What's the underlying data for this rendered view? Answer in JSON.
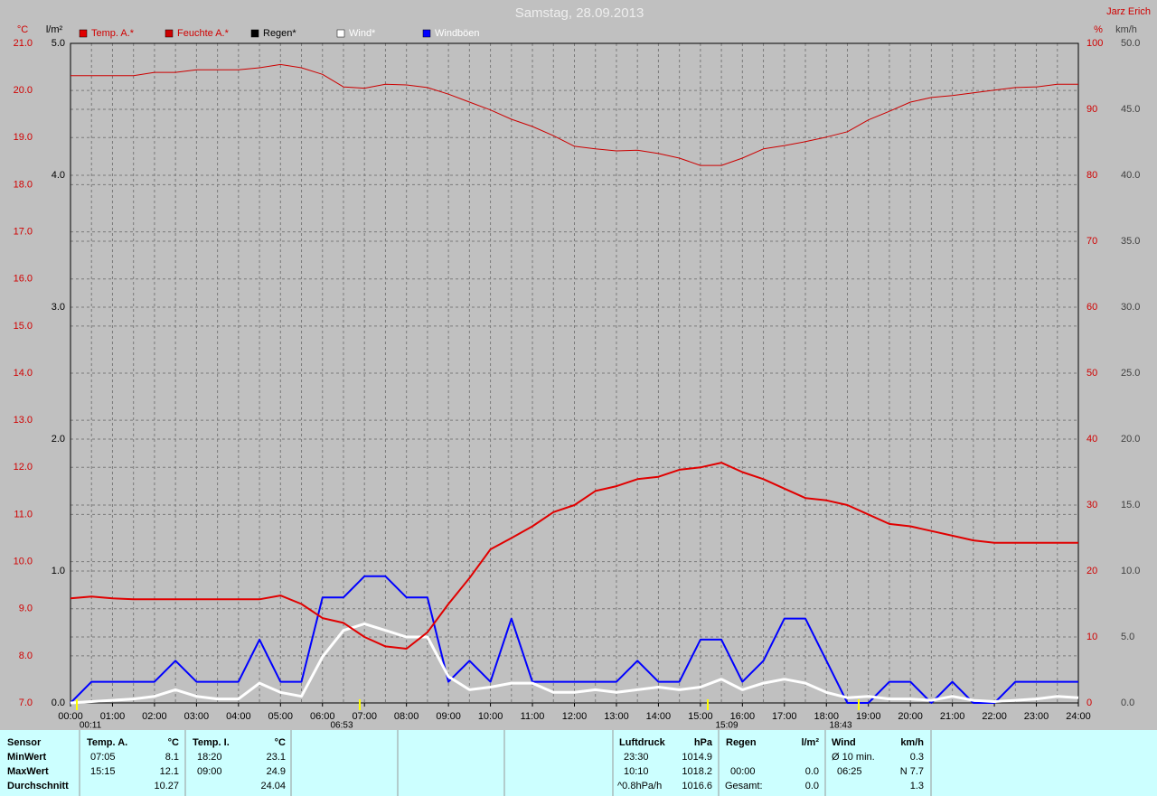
{
  "chart_data": {
    "type": "line",
    "title": "Samstag, 28.09.2013",
    "author": "Jarz Erich",
    "y_label": "°C",
    "y2_label": "l/m²",
    "y3_label": "%",
    "y4_label": "km/h",
    "grid": true,
    "xlim": [
      0,
      24
    ],
    "xticks": [
      {
        "value": 0,
        "label": "00:00"
      },
      {
        "value": 1,
        "label": "01:00"
      },
      {
        "value": 2,
        "label": "02:00"
      },
      {
        "value": 3,
        "label": "03:00"
      },
      {
        "value": 4,
        "label": "04:00"
      },
      {
        "value": 5,
        "label": "05:00"
      },
      {
        "value": 6,
        "label": "06:00"
      },
      {
        "value": 7,
        "label": "07:00"
      },
      {
        "value": 8,
        "label": "08:00"
      },
      {
        "value": 9,
        "label": "09:00"
      },
      {
        "value": 10,
        "label": "10:00"
      },
      {
        "value": 11,
        "label": "11:00"
      },
      {
        "value": 12,
        "label": "12:00"
      },
      {
        "value": 13,
        "label": "13:00"
      },
      {
        "value": 14,
        "label": "14:00"
      },
      {
        "value": 15,
        "label": "15:00"
      },
      {
        "value": 16,
        "label": "16:00"
      },
      {
        "value": 17,
        "label": "17:00"
      },
      {
        "value": 18,
        "label": "18:00"
      },
      {
        "value": 19,
        "label": "19:00"
      },
      {
        "value": 20,
        "label": "20:00"
      },
      {
        "value": 21,
        "label": "21:00"
      },
      {
        "value": 22,
        "label": "22:00"
      },
      {
        "value": 23,
        "label": "23:00"
      },
      {
        "value": 24,
        "label": "24:00"
      }
    ],
    "ylim": [
      7,
      21
    ],
    "yticks": [
      {
        "value": 21,
        "label": "21.0"
      },
      {
        "value": 20,
        "label": "20.0"
      },
      {
        "value": 19,
        "label": "19.0"
      },
      {
        "value": 18,
        "label": "18.0"
      },
      {
        "value": 17,
        "label": "17.0"
      },
      {
        "value": 16,
        "label": "16.0"
      },
      {
        "value": 15,
        "label": "15.0"
      },
      {
        "value": 14,
        "label": "14.0"
      },
      {
        "value": 13,
        "label": "13.0"
      },
      {
        "value": 12,
        "label": "12.0"
      },
      {
        "value": 11,
        "label": "11.0"
      },
      {
        "value": 10,
        "label": "10.0"
      },
      {
        "value": 9,
        "label": "9.0"
      },
      {
        "value": 8,
        "label": "8.0"
      },
      {
        "value": 7,
        "label": "7.0"
      }
    ],
    "y2lim": [
      0,
      5
    ],
    "y2ticks": [
      {
        "value": 5,
        "label": "5.0"
      },
      {
        "value": 4,
        "label": "4.0"
      },
      {
        "value": 3,
        "label": "3.0"
      },
      {
        "value": 2,
        "label": "2.0"
      },
      {
        "value": 1,
        "label": "1.0"
      },
      {
        "value": 0,
        "label": "0.0"
      }
    ],
    "y3lim": [
      0,
      100
    ],
    "y3ticks": [
      100,
      90,
      80,
      70,
      60,
      50,
      40,
      30,
      20,
      10,
      0
    ],
    "y4lim": [
      0,
      50
    ],
    "y4ticks": [
      {
        "value": 50,
        "label": "50.0"
      },
      {
        "value": 45,
        "label": "45.0"
      },
      {
        "value": 40,
        "label": "40.0"
      },
      {
        "value": 35,
        "label": "35.0"
      },
      {
        "value": 30,
        "label": "30.0"
      },
      {
        "value": 25,
        "label": "25.0"
      },
      {
        "value": 20,
        "label": "20.0"
      },
      {
        "value": 15,
        "label": "15.0"
      },
      {
        "value": 10,
        "label": "10.0"
      },
      {
        "value": 5,
        "label": "5.0"
      },
      {
        "value": 0,
        "label": "0.0"
      }
    ],
    "x": [
      0,
      0.5,
      1,
      1.5,
      2,
      2.5,
      3,
      3.5,
      4,
      4.5,
      5,
      5.5,
      6,
      6.5,
      7,
      7.5,
      8,
      8.5,
      9,
      9.5,
      10,
      10.5,
      11,
      11.5,
      12,
      12.5,
      13,
      13.5,
      14,
      14.5,
      15,
      15.5,
      16,
      16.5,
      17,
      17.5,
      18,
      18.5,
      19,
      19.5,
      20,
      20.5,
      21,
      21.5,
      22,
      22.5,
      23,
      23.5,
      24
    ],
    "series": [
      {
        "name": "Temp. A.*",
        "color": "#e00000",
        "axis": "y",
        "values": [
          9.22,
          9.26,
          9.22,
          9.2,
          9.2,
          9.2,
          9.2,
          9.2,
          9.2,
          9.2,
          9.28,
          9.1,
          8.8,
          8.7,
          8.4,
          8.2,
          8.15,
          8.5,
          9.1,
          9.65,
          10.26,
          10.5,
          10.75,
          11.05,
          11.2,
          11.5,
          11.6,
          11.75,
          11.8,
          11.95,
          12.0,
          12.1,
          11.9,
          11.75,
          11.55,
          11.35,
          11.3,
          11.2,
          11.0,
          10.8,
          10.75,
          10.65,
          10.55,
          10.45,
          10.4,
          10.4,
          10.4,
          10.4,
          10.4
        ]
      },
      {
        "name": "Feuchte A.*",
        "color": "#cc0000",
        "axis": "y3",
        "values": [
          95.1,
          95.1,
          95.1,
          95.1,
          95.6,
          95.6,
          96.0,
          96.0,
          96.0,
          96.3,
          96.8,
          96.3,
          95.3,
          93.4,
          93.2,
          93.8,
          93.7,
          93.3,
          92.3,
          91.1,
          89.9,
          88.5,
          87.4,
          86.0,
          84.4,
          84.0,
          83.7,
          83.8,
          83.3,
          82.6,
          81.5,
          81.5,
          82.6,
          84.0,
          84.5,
          85.1,
          85.8,
          86.6,
          88.4,
          89.7,
          91.1,
          91.8,
          92.1,
          92.5,
          92.9,
          93.3,
          93.4,
          93.8,
          93.8
        ]
      },
      {
        "name": "Regen*",
        "color": "#000000",
        "axis": "y2",
        "values": [
          0,
          0,
          0,
          0,
          0,
          0,
          0,
          0,
          0,
          0,
          0,
          0,
          0,
          0,
          0,
          0,
          0,
          0,
          0,
          0,
          0,
          0,
          0,
          0,
          0,
          0,
          0,
          0,
          0,
          0,
          0,
          0,
          0,
          0,
          0,
          0,
          0,
          0,
          0,
          0,
          0,
          0,
          0,
          0,
          0,
          0,
          0,
          0,
          0
        ]
      },
      {
        "name": "Wind*",
        "color": "#ffffff",
        "axis": "y4",
        "values": [
          0,
          0.1,
          0.2,
          0.3,
          0.5,
          1.0,
          0.5,
          0.3,
          0.3,
          1.5,
          0.8,
          0.5,
          3.5,
          5.5,
          6.0,
          5.5,
          5.0,
          5.0,
          2.0,
          1.0,
          1.2,
          1.5,
          1.5,
          0.8,
          0.8,
          1.0,
          0.8,
          1.0,
          1.2,
          1.0,
          1.2,
          1.8,
          1.0,
          1.5,
          1.8,
          1.5,
          0.8,
          0.4,
          0.5,
          0.3,
          0.3,
          0.2,
          0.5,
          0.2,
          0.1,
          0.2,
          0.3,
          0.5,
          0.4
        ]
      },
      {
        "name": "Windböen",
        "color": "#0000ff",
        "axis": "y4",
        "values": [
          0,
          1.6,
          1.6,
          1.6,
          1.6,
          3.2,
          1.6,
          1.6,
          1.6,
          4.8,
          1.6,
          1.6,
          8.0,
          8.0,
          9.6,
          9.6,
          8.0,
          8.0,
          1.6,
          3.2,
          1.6,
          6.4,
          1.6,
          1.6,
          1.6,
          1.6,
          1.6,
          3.2,
          1.6,
          1.6,
          4.8,
          4.8,
          1.6,
          3.2,
          6.4,
          6.4,
          3.2,
          0,
          0,
          1.6,
          1.6,
          0,
          1.6,
          0,
          0,
          1.6,
          1.6,
          1.6,
          1.6
        ]
      }
    ],
    "annotations": [
      "00:11",
      "06:53",
      "15:09",
      "18:43"
    ]
  },
  "table": {
    "sensor": {
      "header": "Sensor",
      "rows": [
        "MinWert",
        "MaxWert",
        "Durchschnitt"
      ]
    },
    "temp_a": {
      "header": "Temp. A.",
      "unit": "°C",
      "min": {
        "time": "07:05",
        "value": "8.1"
      },
      "max": {
        "time": "15:15",
        "value": "12.1"
      },
      "avg": "10.27"
    },
    "temp_i": {
      "header": "Temp. I.",
      "unit": "°C",
      "min": {
        "time": "18:20",
        "value": "23.1"
      },
      "max": {
        "time": "09:00",
        "value": "24.9"
      },
      "avg": "24.04"
    },
    "luftdruck": {
      "header": "Luftdruck",
      "unit": "hPa",
      "min": {
        "time": "23:30",
        "value": "1014.9"
      },
      "max": {
        "time": "10:10",
        "value": "1018.2"
      },
      "trend": "^0.8hPa/h",
      "avg": "1016.6"
    },
    "regen": {
      "header": "Regen",
      "unit": "l/m²",
      "last": {
        "time": "00:00",
        "value": "0.0"
      },
      "total": {
        "label": "Gesamt:",
        "value": "0.0"
      }
    },
    "wind": {
      "header": "Wind",
      "unit": "km/h",
      "avg10": {
        "label": "Ø 10 min.",
        "value": "0.3"
      },
      "max": {
        "time": "06:25",
        "value": "N 7.7"
      },
      "avg": "1.3"
    }
  }
}
